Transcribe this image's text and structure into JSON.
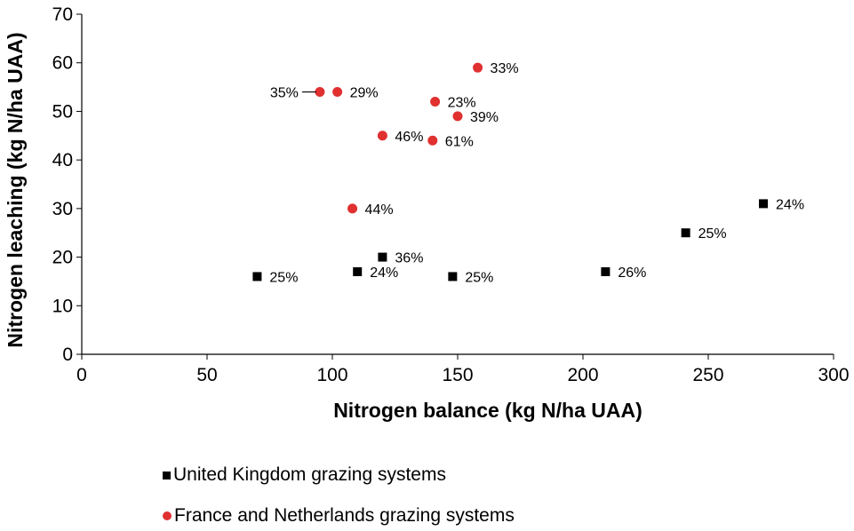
{
  "chart_data": {
    "type": "scatter",
    "title": "",
    "xlabel": "Nitrogen balance (kg N/ha UAA)",
    "ylabel": "Nitrogen leaching (kg N/ha UAA)",
    "xlim": [
      0,
      300
    ],
    "ylim": [
      0,
      70
    ],
    "xticks": [
      "0",
      "50",
      "100",
      "150",
      "200",
      "250",
      "300"
    ],
    "yticks": [
      "0",
      "10",
      "20",
      "30",
      "40",
      "50",
      "60",
      "70"
    ],
    "grid": false,
    "series": [
      {
        "name": "United Kingdom grazing systems",
        "marker": "square",
        "color": "#000000",
        "points": [
          {
            "x": 70,
            "y": 16,
            "label": "25%"
          },
          {
            "x": 110,
            "y": 17,
            "label": "24%"
          },
          {
            "x": 120,
            "y": 20,
            "label": "36%"
          },
          {
            "x": 148,
            "y": 16,
            "label": "25%"
          },
          {
            "x": 209,
            "y": 17,
            "label": "26%"
          },
          {
            "x": 241,
            "y": 25,
            "label": "25%"
          },
          {
            "x": 272,
            "y": 31,
            "label": "24%"
          }
        ]
      },
      {
        "name": "France and Netherlands grazing systems",
        "marker": "circle",
        "color": "#e03030",
        "points": [
          {
            "x": 95,
            "y": 54,
            "label": "35%"
          },
          {
            "x": 102,
            "y": 54,
            "label": "29%"
          },
          {
            "x": 108,
            "y": 30,
            "label": "44%"
          },
          {
            "x": 120,
            "y": 45,
            "label": "46%"
          },
          {
            "x": 140,
            "y": 44,
            "label": "61%"
          },
          {
            "x": 141,
            "y": 52,
            "label": "23%"
          },
          {
            "x": 150,
            "y": 49,
            "label": "39%"
          },
          {
            "x": 158,
            "y": 59,
            "label": "33%"
          }
        ]
      }
    ],
    "legend": {
      "placement": "bottom-left",
      "items": [
        {
          "label": "United Kingdom grazing systems",
          "marker": "square",
          "color": "#000000"
        },
        {
          "label": "France and Netherlands grazing systems",
          "marker": "circle",
          "color": "#e03030"
        }
      ]
    }
  }
}
